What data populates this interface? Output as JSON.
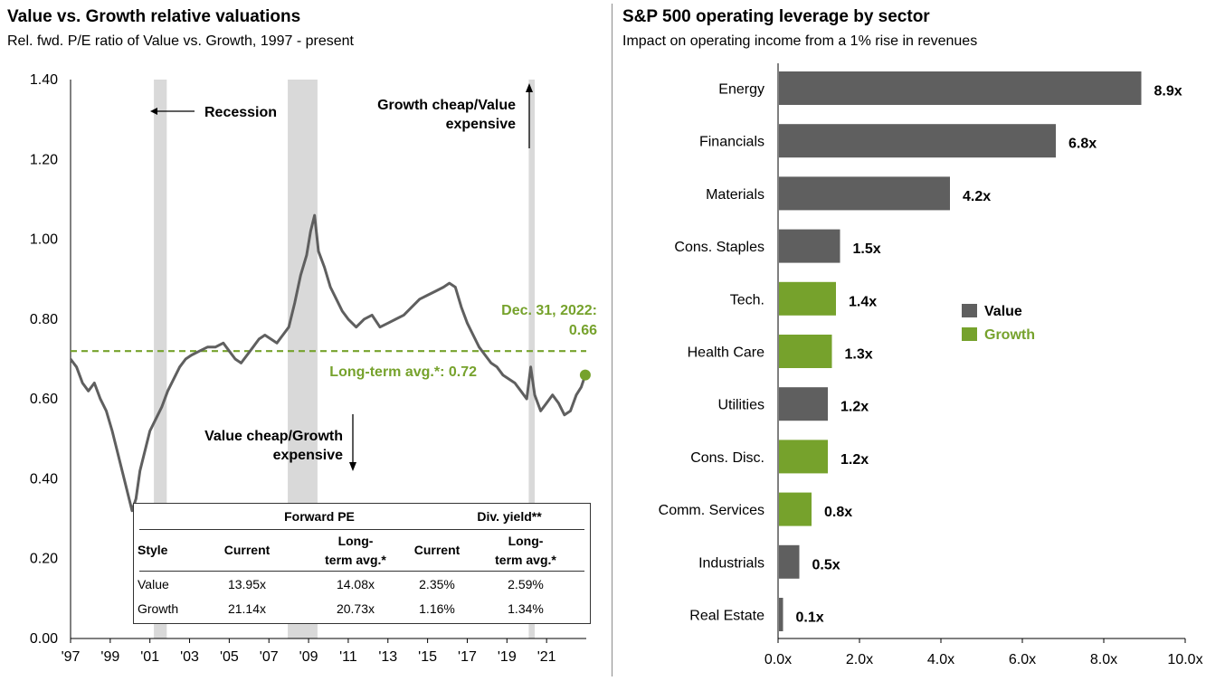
{
  "left": {
    "title": "Value vs. Growth relative valuations",
    "subtitle": "Rel. fwd. P/E ratio of Value vs. Growth, 1997 - present",
    "annotations": {
      "recession": "Recession",
      "growth_cheap_1": "Growth cheap/Value",
      "growth_cheap_2": "expensive",
      "value_cheap_1": "Value cheap/Growth",
      "value_cheap_2": "expensive",
      "current_1": "Dec. 31, 2022:",
      "current_2": "0.66",
      "avg": "Long-term avg.*:  0.72"
    },
    "table": {
      "group_forward_pe": "Forward PE",
      "group_div_yield": "Div. yield**",
      "col_style": "Style",
      "col_current_1": "Current",
      "col_lt_1a": "Long-",
      "col_lt_1b": "term avg.*",
      "col_current_2": "Current",
      "col_lt_2a": "Long-",
      "col_lt_2b": "term avg.*",
      "rows": [
        {
          "style": "Value",
          "pe_current": "13.95x",
          "pe_lt": "14.08x",
          "dy_current": "2.35%",
          "dy_lt": "2.59%"
        },
        {
          "style": "Growth",
          "pe_current": "21.14x",
          "pe_lt": "20.73x",
          "dy_current": "1.16%",
          "dy_lt": "1.34%"
        }
      ]
    }
  },
  "right": {
    "title": "S&P 500 operating leverage by sector",
    "subtitle": "Impact on operating income from a 1% rise in revenues",
    "legend": [
      {
        "label": "Value",
        "color": "#5f5f5f"
      },
      {
        "label": "Growth",
        "color": "#76a22c"
      }
    ]
  },
  "chart_data": [
    {
      "type": "line",
      "title": "Value vs. Growth relative valuations",
      "ylim": [
        0,
        1.4
      ],
      "yticks": [
        "0.00",
        "0.20",
        "0.40",
        "0.60",
        "0.80",
        "1.00",
        "1.20",
        "1.40"
      ],
      "xticks": [
        "'97",
        "'99",
        "'01",
        "'03",
        "'05",
        "'07",
        "'09",
        "'11",
        "'13",
        "'15",
        "'17",
        "'19",
        "'21"
      ],
      "xlim": [
        1997.0,
        2023.0
      ],
      "average": 0.72,
      "current": {
        "x": 2022.95,
        "y": 0.66
      },
      "recessions": [
        [
          2001.2,
          2001.85
        ],
        [
          2007.95,
          2009.45
        ],
        [
          2020.1,
          2020.4
        ]
      ],
      "series": [
        {
          "color": "#5f5f5f",
          "points": [
            [
              1997.0,
              0.7
            ],
            [
              1997.3,
              0.68
            ],
            [
              1997.6,
              0.64
            ],
            [
              1997.9,
              0.62
            ],
            [
              1998.2,
              0.64
            ],
            [
              1998.5,
              0.6
            ],
            [
              1998.8,
              0.57
            ],
            [
              1999.1,
              0.52
            ],
            [
              1999.4,
              0.46
            ],
            [
              1999.7,
              0.4
            ],
            [
              1999.9,
              0.36
            ],
            [
              2000.1,
              0.32
            ],
            [
              2000.3,
              0.35
            ],
            [
              2000.5,
              0.42
            ],
            [
              2000.8,
              0.48
            ],
            [
              2001.0,
              0.52
            ],
            [
              2001.3,
              0.55
            ],
            [
              2001.6,
              0.58
            ],
            [
              2001.9,
              0.62
            ],
            [
              2002.2,
              0.65
            ],
            [
              2002.5,
              0.68
            ],
            [
              2002.8,
              0.7
            ],
            [
              2003.1,
              0.71
            ],
            [
              2003.5,
              0.72
            ],
            [
              2003.9,
              0.73
            ],
            [
              2004.3,
              0.73
            ],
            [
              2004.7,
              0.74
            ],
            [
              2005.0,
              0.72
            ],
            [
              2005.3,
              0.7
            ],
            [
              2005.6,
              0.69
            ],
            [
              2005.9,
              0.71
            ],
            [
              2006.2,
              0.73
            ],
            [
              2006.5,
              0.75
            ],
            [
              2006.8,
              0.76
            ],
            [
              2007.1,
              0.75
            ],
            [
              2007.4,
              0.74
            ],
            [
              2007.7,
              0.76
            ],
            [
              2008.0,
              0.78
            ],
            [
              2008.3,
              0.84
            ],
            [
              2008.6,
              0.91
            ],
            [
              2008.9,
              0.96
            ],
            [
              2009.1,
              1.02
            ],
            [
              2009.3,
              1.06
            ],
            [
              2009.5,
              0.97
            ],
            [
              2009.8,
              0.93
            ],
            [
              2010.1,
              0.88
            ],
            [
              2010.4,
              0.85
            ],
            [
              2010.7,
              0.82
            ],
            [
              2011.0,
              0.8
            ],
            [
              2011.4,
              0.78
            ],
            [
              2011.8,
              0.8
            ],
            [
              2012.2,
              0.81
            ],
            [
              2012.6,
              0.78
            ],
            [
              2013.0,
              0.79
            ],
            [
              2013.4,
              0.8
            ],
            [
              2013.8,
              0.81
            ],
            [
              2014.2,
              0.83
            ],
            [
              2014.6,
              0.85
            ],
            [
              2015.0,
              0.86
            ],
            [
              2015.4,
              0.87
            ],
            [
              2015.8,
              0.88
            ],
            [
              2016.1,
              0.89
            ],
            [
              2016.4,
              0.88
            ],
            [
              2016.7,
              0.83
            ],
            [
              2017.0,
              0.79
            ],
            [
              2017.3,
              0.76
            ],
            [
              2017.6,
              0.73
            ],
            [
              2017.9,
              0.71
            ],
            [
              2018.2,
              0.69
            ],
            [
              2018.5,
              0.68
            ],
            [
              2018.8,
              0.66
            ],
            [
              2019.1,
              0.65
            ],
            [
              2019.4,
              0.64
            ],
            [
              2019.7,
              0.62
            ],
            [
              2020.0,
              0.6
            ],
            [
              2020.2,
              0.68
            ],
            [
              2020.4,
              0.61
            ],
            [
              2020.7,
              0.57
            ],
            [
              2021.0,
              0.59
            ],
            [
              2021.3,
              0.61
            ],
            [
              2021.6,
              0.59
            ],
            [
              2021.9,
              0.56
            ],
            [
              2022.2,
              0.57
            ],
            [
              2022.5,
              0.61
            ],
            [
              2022.75,
              0.63
            ],
            [
              2022.95,
              0.66
            ]
          ]
        }
      ]
    },
    {
      "type": "bar",
      "title": "S&P 500 operating leverage by sector",
      "categories": [
        "Energy",
        "Financials",
        "Materials",
        "Cons. Staples",
        "Tech.",
        "Health Care",
        "Utilities",
        "Cons. Disc.",
        "Comm. Services",
        "Industrials",
        "Real Estate"
      ],
      "values": [
        8.9,
        6.8,
        4.2,
        1.5,
        1.4,
        1.3,
        1.2,
        1.2,
        0.8,
        0.5,
        0.1
      ],
      "labels": [
        "8.9x",
        "6.8x",
        "4.2x",
        "1.5x",
        "1.4x",
        "1.3x",
        "1.2x",
        "1.2x",
        "0.8x",
        "0.5x",
        "0.1x"
      ],
      "style": [
        "Value",
        "Value",
        "Value",
        "Value",
        "Growth",
        "Growth",
        "Value",
        "Growth",
        "Growth",
        "Value",
        "Value"
      ],
      "xlim": [
        0,
        10
      ],
      "xticks": [
        "0.0x",
        "2.0x",
        "4.0x",
        "6.0x",
        "8.0x",
        "10.0x"
      ]
    }
  ]
}
